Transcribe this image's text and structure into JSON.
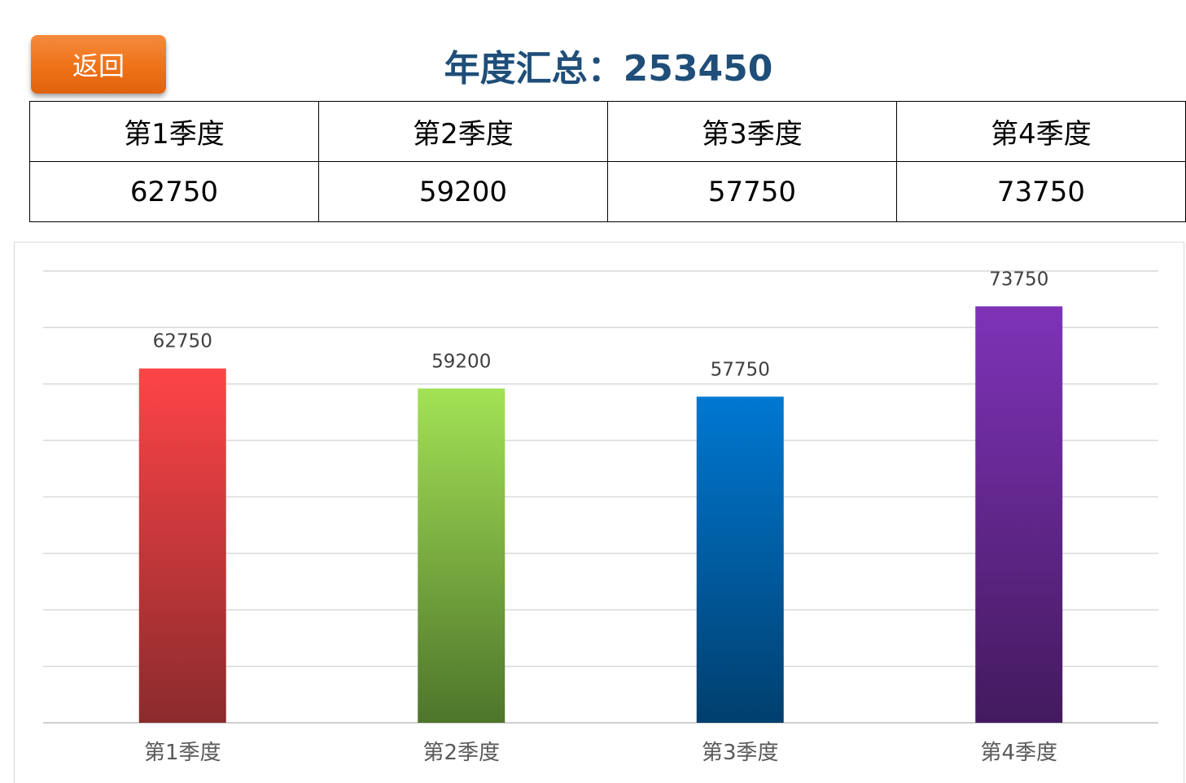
{
  "header": {
    "back_label": "返回",
    "title": "年度汇总：253450"
  },
  "table": {
    "headers": [
      "第1季度",
      "第2季度",
      "第3季度",
      "第4季度"
    ],
    "values": [
      "62750",
      "59200",
      "57750",
      "73750"
    ]
  },
  "chart_data": {
    "type": "bar",
    "categories": [
      "第1季度",
      "第2季度",
      "第3季度",
      "第4季度"
    ],
    "values": [
      62750,
      59200,
      57750,
      73750
    ],
    "title": "",
    "xlabel": "",
    "ylabel": "",
    "ylim": [
      0,
      80000
    ],
    "grid": true,
    "gridline_count": 8,
    "legend": "none",
    "colors": [
      [
        "#fe4447",
        "#8b2b2d"
      ],
      [
        "#a3e255",
        "#4e752b"
      ],
      [
        "#0078d2",
        "#003f6e"
      ],
      [
        "#7f33b8",
        "#431a5e"
      ]
    ]
  }
}
